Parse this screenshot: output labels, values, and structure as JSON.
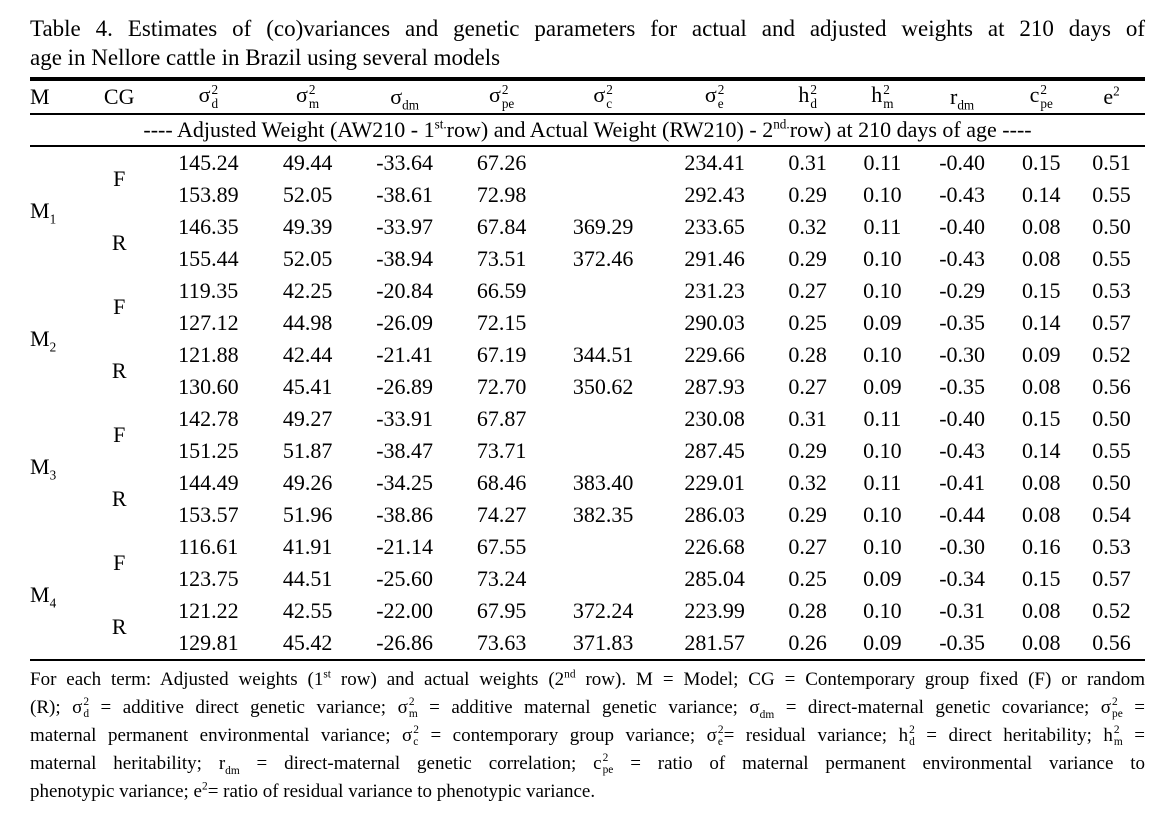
{
  "page": {
    "ink_color": "#000000",
    "paper_color": "#ffffff",
    "title_line1": "Table 4. Estimates of (co)variances and genetic parameters for actual and adjusted weights at 210 days of",
    "title_line2": "age in Nellore cattle in Brazil using several models"
  },
  "table": {
    "columns": [
      {
        "base": "M"
      },
      {
        "base": "CG"
      },
      {
        "base": "σ",
        "sup": "2",
        "sub": "d"
      },
      {
        "base": "σ",
        "sup": "2",
        "sub": "m"
      },
      {
        "base": "σ",
        "sub": "dm"
      },
      {
        "base": "σ",
        "sup": "2",
        "sub": "pe"
      },
      {
        "base": "σ",
        "sup": "2",
        "sub": "c"
      },
      {
        "base": "σ",
        "sup": "2",
        "sub": "e"
      },
      {
        "base": "h",
        "sup": "2",
        "sub": "d"
      },
      {
        "base": "h",
        "sup": "2",
        "sub": "m"
      },
      {
        "base": "r",
        "sub": "dm"
      },
      {
        "base": "c",
        "sup": "2",
        "sub": "pe"
      },
      {
        "base": "e",
        "sup": "2"
      }
    ],
    "span_row": [
      {
        "t": "---- Adjusted Weight (AW210 - 1"
      },
      {
        "sup": "st."
      },
      {
        "t": "row) and Actual Weight (RW210) - 2"
      },
      {
        "sup": "nd."
      },
      {
        "t": "row) at 210 days of age ----"
      }
    ],
    "groups": [
      {
        "model": {
          "base": "M",
          "sub": "1"
        },
        "cg": [
          {
            "label": "F",
            "rows": [
              [
                "145.24",
                "49.44",
                "-33.64",
                "67.26",
                "",
                "234.41",
                "0.31",
                "0.11",
                "-0.40",
                "0.15",
                "0.51"
              ],
              [
                "153.89",
                "52.05",
                "-38.61",
                "72.98",
                "",
                "292.43",
                "0.29",
                "0.10",
                "-0.43",
                "0.14",
                "0.55"
              ]
            ]
          },
          {
            "label": "R",
            "rows": [
              [
                "146.35",
                "49.39",
                "-33.97",
                "67.84",
                "369.29",
                "233.65",
                "0.32",
                "0.11",
                "-0.40",
                "0.08",
                "0.50"
              ],
              [
                "155.44",
                "52.05",
                "-38.94",
                "73.51",
                "372.46",
                "291.46",
                "0.29",
                "0.10",
                "-0.43",
                "0.08",
                "0.55"
              ]
            ]
          }
        ]
      },
      {
        "model": {
          "base": "M",
          "sub": "2"
        },
        "cg": [
          {
            "label": "F",
            "rows": [
              [
                "119.35",
                "42.25",
                "-20.84",
                "66.59",
                "",
                "231.23",
                "0.27",
                "0.10",
                "-0.29",
                "0.15",
                "0.53"
              ],
              [
                "127.12",
                "44.98",
                "-26.09",
                "72.15",
                "",
                "290.03",
                "0.25",
                "0.09",
                "-0.35",
                "0.14",
                "0.57"
              ]
            ]
          },
          {
            "label": "R",
            "rows": [
              [
                "121.88",
                "42.44",
                "-21.41",
                "67.19",
                "344.51",
                "229.66",
                "0.28",
                "0.10",
                "-0.30",
                "0.09",
                "0.52"
              ],
              [
                "130.60",
                "45.41",
                "-26.89",
                "72.70",
                "350.62",
                "287.93",
                "0.27",
                "0.09",
                "-0.35",
                "0.08",
                "0.56"
              ]
            ]
          }
        ]
      },
      {
        "model": {
          "base": "M",
          "sub": "3"
        },
        "cg": [
          {
            "label": "F",
            "rows": [
              [
                "142.78",
                "49.27",
                "-33.91",
                "67.87",
                "",
                "230.08",
                "0.31",
                "0.11",
                "-0.40",
                "0.15",
                "0.50"
              ],
              [
                "151.25",
                "51.87",
                "-38.47",
                "73.71",
                "",
                "287.45",
                "0.29",
                "0.10",
                "-0.43",
                "0.14",
                "0.55"
              ]
            ]
          },
          {
            "label": "R",
            "rows": [
              [
                "144.49",
                "49.26",
                "-34.25",
                "68.46",
                "383.40",
                "229.01",
                "0.32",
                "0.11",
                "-0.41",
                "0.08",
                "0.50"
              ],
              [
                "153.57",
                "51.96",
                "-38.86",
                "74.27",
                "382.35",
                "286.03",
                "0.29",
                "0.10",
                "-0.44",
                "0.08",
                "0.54"
              ]
            ]
          }
        ]
      },
      {
        "model": {
          "base": "M",
          "sub": "4"
        },
        "cg": [
          {
            "label": "F",
            "rows": [
              [
                "116.61",
                "41.91",
                "-21.14",
                "67.55",
                "",
                "226.68",
                "0.27",
                "0.10",
                "-0.30",
                "0.16",
                "0.53"
              ],
              [
                "123.75",
                "44.51",
                "-25.60",
                "73.24",
                "",
                "285.04",
                "0.25",
                "0.09",
                "-0.34",
                "0.15",
                "0.57"
              ]
            ]
          },
          {
            "label": "R",
            "rows": [
              [
                "121.22",
                "42.55",
                "-22.00",
                "67.95",
                "372.24",
                "223.99",
                "0.28",
                "0.10",
                "-0.31",
                "0.08",
                "0.52"
              ],
              [
                "129.81",
                "45.42",
                "-26.86",
                "73.63",
                "371.83",
                "281.57",
                "0.26",
                "0.09",
                "-0.35",
                "0.08",
                "0.56"
              ]
            ]
          }
        ]
      }
    ]
  },
  "footnote": {
    "lines": [
      [
        {
          "t": "For each term: Adjusted weights (1"
        },
        {
          "sup": "st"
        },
        {
          "t": " row) and actual weights (2"
        },
        {
          "sup": "nd"
        },
        {
          "t": " row). M = Model; CG = Contemporary group fixed (F) or random"
        }
      ],
      [
        {
          "t": "(R); "
        },
        {
          "sym": {
            "base": "σ",
            "sup": "2",
            "sub": "d"
          }
        },
        {
          "t": " = additive direct genetic variance; "
        },
        {
          "sym": {
            "base": "σ",
            "sup": "2",
            "sub": "m"
          }
        },
        {
          "t": " = additive maternal genetic variance; "
        },
        {
          "sym": {
            "base": "σ",
            "sub": "dm"
          }
        },
        {
          "t": " = direct-maternal genetic covariance; "
        },
        {
          "sym": {
            "base": "σ",
            "sup": "2",
            "sub": "pe"
          }
        },
        {
          "t": " ="
        }
      ],
      [
        {
          "t": "maternal permanent environmental variance; "
        },
        {
          "sym": {
            "base": "σ",
            "sup": "2",
            "sub": "c"
          }
        },
        {
          "t": " = contemporary group variance; "
        },
        {
          "sym": {
            "base": "σ",
            "sup": "2",
            "sub": "e"
          }
        },
        {
          "t": "= residual variance; "
        },
        {
          "sym": {
            "base": "h",
            "sup": "2",
            "sub": "d"
          }
        },
        {
          "t": " = direct heritability; "
        },
        {
          "sym": {
            "base": "h",
            "sup": "2",
            "sub": "m"
          }
        },
        {
          "t": " ="
        }
      ],
      [
        {
          "t": "maternal heritability; "
        },
        {
          "sym": {
            "base": "r",
            "sub": "dm"
          }
        },
        {
          "t": " = direct-maternal genetic correlation; "
        },
        {
          "sym": {
            "base": "c",
            "sup": "2",
            "sub": "pe"
          }
        },
        {
          "t": " = ratio of maternal permanent environmental variance to"
        }
      ],
      [
        {
          "t": "phenotypic variance; "
        },
        {
          "sym": {
            "base": "e",
            "sup": "2"
          }
        },
        {
          "t": "= ratio of residual variance to phenotypic variance."
        }
      ]
    ]
  }
}
